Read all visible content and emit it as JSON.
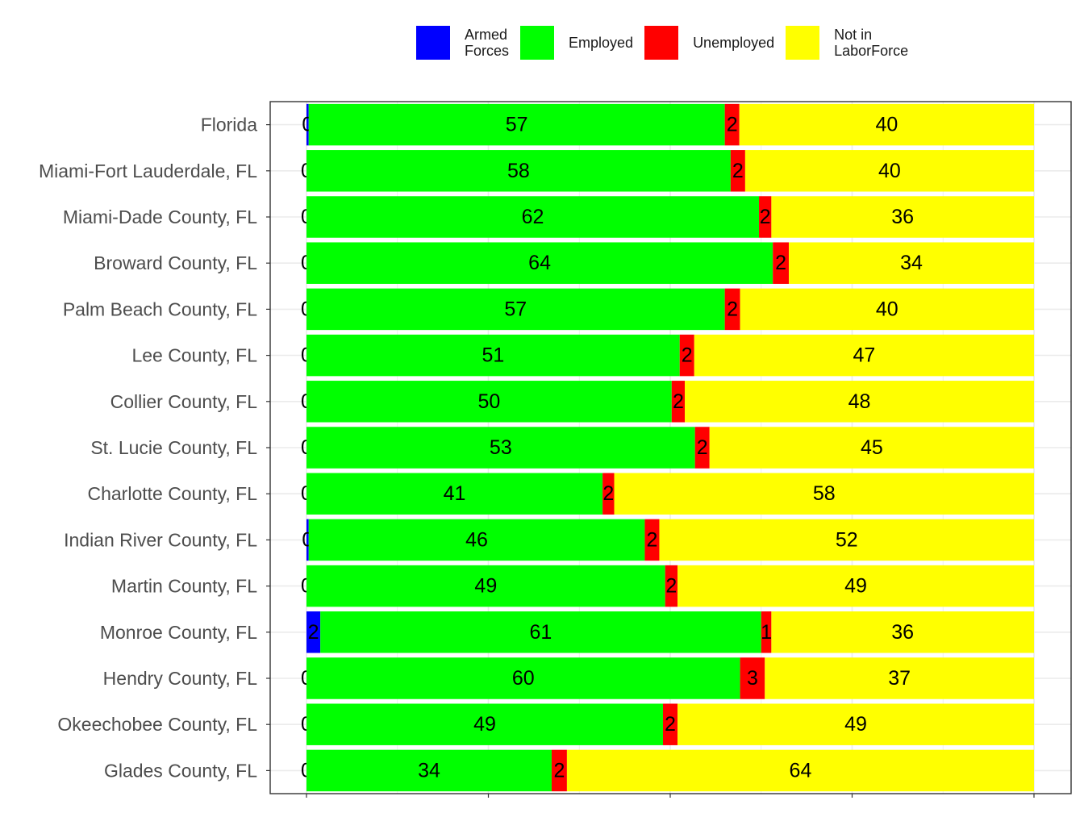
{
  "chart_data": {
    "type": "bar",
    "orientation": "horizontal",
    "stacked": true,
    "normalized_percent": true,
    "categories": [
      "Florida",
      "Miami-Fort Lauderdale, FL",
      "Miami-Dade County, FL",
      "Broward County, FL",
      "Palm Beach County, FL",
      "Lee County, FL",
      "Collier County, FL",
      "St. Lucie County, FL",
      "Charlotte County, FL",
      "Indian River County, FL",
      "Martin County, FL",
      "Monroe County, FL",
      "Hendry County, FL",
      "Okeechobee County, FL",
      "Glades County, FL"
    ],
    "series": [
      {
        "name": "Armed Forces",
        "color": "#0000FF",
        "values": [
          0.3,
          0,
          0,
          0,
          0,
          0,
          0,
          0,
          0,
          0.3,
          0,
          1.9,
          0,
          0,
          0
        ]
      },
      {
        "name": "Employed",
        "color": "#00FF00",
        "values": [
          57.2,
          58.3,
          62.2,
          64.1,
          57.5,
          51.3,
          50.2,
          53.4,
          40.7,
          46.2,
          49.3,
          60.6,
          59.6,
          49.0,
          33.7
        ]
      },
      {
        "name": "Unemployed",
        "color": "#FF0000",
        "values": [
          2.0,
          2.0,
          1.7,
          2.2,
          2.1,
          2.0,
          1.8,
          2.0,
          1.6,
          2.0,
          1.7,
          1.4,
          3.4,
          2.0,
          2.1
        ]
      },
      {
        "name": "Not in LaborForce",
        "color": "#FFFF00",
        "values": [
          40.5,
          39.7,
          36.1,
          33.7,
          40.4,
          46.7,
          48.0,
          44.6,
          57.7,
          51.5,
          49.0,
          36.1,
          37.0,
          49.0,
          64.2
        ]
      }
    ],
    "data_labels": [
      [
        "0",
        "57",
        "2",
        "40"
      ],
      [
        "0",
        "58",
        "2",
        "40"
      ],
      [
        "0",
        "62",
        "2",
        "36"
      ],
      [
        "0",
        "64",
        "2",
        "34"
      ],
      [
        "0",
        "57",
        "2",
        "40"
      ],
      [
        "0",
        "51",
        "2",
        "47"
      ],
      [
        "0",
        "50",
        "2",
        "48"
      ],
      [
        "0",
        "53",
        "2",
        "45"
      ],
      [
        "0",
        "41",
        "2",
        "58"
      ],
      [
        "0",
        "46",
        "2",
        "52"
      ],
      [
        "0",
        "49",
        "2",
        "49"
      ],
      [
        "2",
        "61",
        "1",
        "36"
      ],
      [
        "0",
        "60",
        "3",
        "37"
      ],
      [
        "0",
        "49",
        "2",
        "49"
      ],
      [
        "0",
        "34",
        "2",
        "64"
      ]
    ],
    "xlim": [
      0,
      100
    ],
    "x_axis_labels_shown": false,
    "grid": true,
    "legend_position": "top",
    "title": "",
    "xlabel": "",
    "ylabel": ""
  },
  "legend": [
    {
      "label": "Armed\nForces",
      "color": "#0000FF"
    },
    {
      "label": "Employed",
      "color": "#00FF00"
    },
    {
      "label": "Unemployed",
      "color": "#FF0000"
    },
    {
      "label": "Not in\nLaborForce",
      "color": "#FFFF00"
    }
  ]
}
